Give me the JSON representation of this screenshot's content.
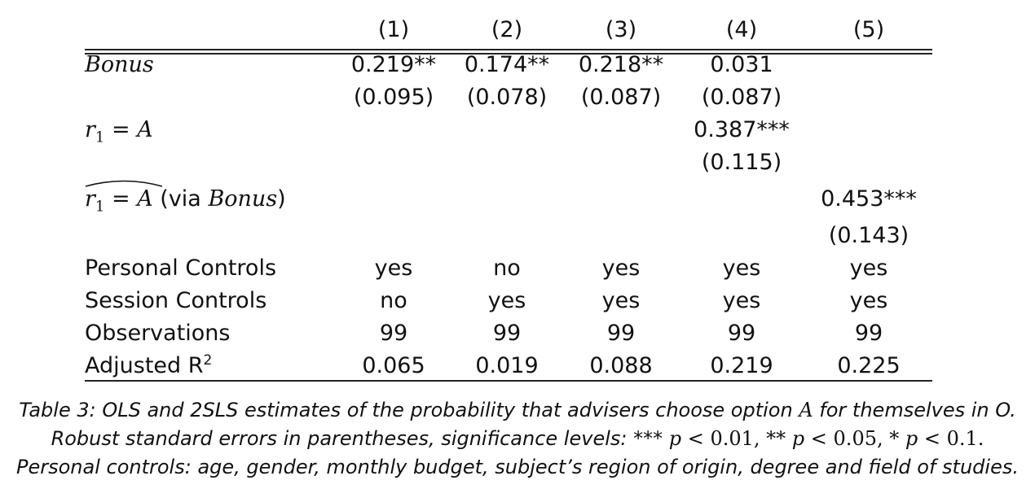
{
  "table": {
    "columns": [
      "(1)",
      "(2)",
      "(3)",
      "(4)",
      "(5)"
    ],
    "rows": [
      {
        "label": "Bonus",
        "values": [
          "0.219**",
          "0.174**",
          "0.218**",
          "0.031",
          ""
        ]
      },
      {
        "label": "",
        "values": [
          "(0.095)",
          "(0.078)",
          "(0.087)",
          "(0.087)",
          ""
        ]
      },
      {
        "label": "r1 = A",
        "values": [
          "",
          "",
          "",
          "0.387***",
          ""
        ]
      },
      {
        "label": "",
        "values": [
          "",
          "",
          "",
          "(0.115)",
          ""
        ]
      },
      {
        "label": "r1 = A (via Bonus)",
        "values": [
          "",
          "",
          "",
          "",
          "0.453***"
        ]
      },
      {
        "label": "",
        "values": [
          "",
          "",
          "",
          "",
          "(0.143)"
        ]
      },
      {
        "label": "Personal Controls",
        "values": [
          "yes",
          "no",
          "yes",
          "yes",
          "yes"
        ]
      },
      {
        "label": "Session Controls",
        "values": [
          "no",
          "yes",
          "yes",
          "yes",
          "yes"
        ]
      },
      {
        "label": "Observations",
        "values": [
          "99",
          "99",
          "99",
          "99",
          "99"
        ]
      },
      {
        "label": "Adjusted R2",
        "values": [
          "0.065",
          "0.019",
          "0.088",
          "0.219",
          "0.225"
        ]
      }
    ],
    "label_parts": {
      "bonus": "Bonus",
      "r": "r",
      "one": "1",
      "eq": "=",
      "A": "A",
      "via": "(via",
      "close": ")",
      "adj": "Adjusted R",
      "sq": "2"
    }
  },
  "caption": {
    "l1a": "Table 3: OLS and 2SLS estimates of the probability that advisers choose option ",
    "l1b": "A",
    "l1c": " for themselves in O.",
    "l2a": "Robust standard errors in parentheses, significance levels: *** ",
    "l2b": "p",
    "l2c": " < 0.01, ** ",
    "l2d": "p",
    "l2e": " < 0.05, * ",
    "l2f": "p",
    "l2g": " < 0.1.",
    "l3": "Personal controls: age, gender, monthly budget, subject’s region of origin, degree and field of studies."
  }
}
